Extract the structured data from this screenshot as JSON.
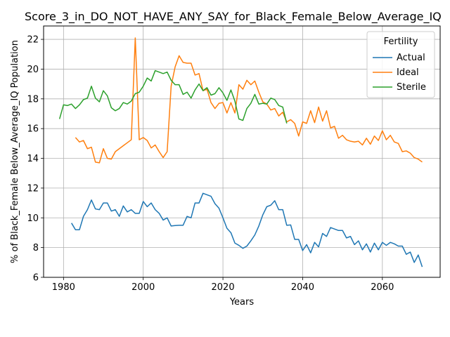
{
  "chart_data": {
    "type": "line",
    "title": "Score_3_in_DO_NOT_HAVE_ANY_SAY_for_Black_Female_Below_Average_IQ",
    "xlabel": "Years",
    "ylabel": "% of Black_Female Below_Average_IQ Population",
    "xlim": [
      1975,
      2074.5
    ],
    "ylim": [
      6,
      22.9
    ],
    "xticks": [
      1980,
      2000,
      2020,
      2040,
      2060
    ],
    "yticks": [
      6,
      8,
      10,
      12,
      14,
      16,
      18,
      20,
      22
    ],
    "grid": true,
    "legend": {
      "title": "Fertility",
      "placement": "top-right"
    },
    "series": [
      {
        "name": "Actual",
        "color": "#1f77b4",
        "x": [
          1982,
          1983,
          1984,
          1985,
          1986,
          1987,
          1988,
          1989,
          1990,
          1991,
          1992,
          1993,
          1994,
          1995,
          1996,
          1997,
          1998,
          1999,
          2000,
          2001,
          2002,
          2003,
          2004,
          2005,
          2006,
          2007,
          2008,
          2009,
          2010,
          2011,
          2012,
          2013,
          2014,
          2015,
          2016,
          2017,
          2018,
          2019,
          2020,
          2021,
          2022,
          2023,
          2024,
          2025,
          2026,
          2027,
          2028,
          2029,
          2030,
          2031,
          2032,
          2033,
          2034,
          2035,
          2036,
          2037,
          2038,
          2039,
          2040,
          2041,
          2042,
          2043,
          2044,
          2045,
          2046,
          2047,
          2048,
          2049,
          2050,
          2051,
          2052,
          2053,
          2054,
          2055,
          2056,
          2057,
          2058,
          2059,
          2060,
          2061,
          2062,
          2063,
          2064,
          2065,
          2066,
          2067,
          2068,
          2069,
          2070
        ],
        "values": [
          9.65,
          9.2,
          9.2,
          10.1,
          10.55,
          11.2,
          10.6,
          10.55,
          11.0,
          11.0,
          10.45,
          10.55,
          10.1,
          10.8,
          10.4,
          10.55,
          10.3,
          10.3,
          11.1,
          10.75,
          11.0,
          10.55,
          10.3,
          9.85,
          10.0,
          9.45,
          9.48,
          9.5,
          9.5,
          10.1,
          10.0,
          11.0,
          11.0,
          11.65,
          11.55,
          11.45,
          10.95,
          10.65,
          10.0,
          9.3,
          9.0,
          8.3,
          8.15,
          7.95,
          8.1,
          8.45,
          8.85,
          9.45,
          10.2,
          10.75,
          10.85,
          11.15,
          10.55,
          10.55,
          9.5,
          9.52,
          8.55,
          8.55,
          7.8,
          8.2,
          7.65,
          8.35,
          8.05,
          8.95,
          8.75,
          9.35,
          9.25,
          9.15,
          9.15,
          8.65,
          8.75,
          8.2,
          8.45,
          7.85,
          8.25,
          7.7,
          8.3,
          7.85,
          8.35,
          8.15,
          8.35,
          8.25,
          8.1,
          8.1,
          7.55,
          7.7,
          7.0,
          7.5,
          6.7
        ]
      },
      {
        "name": "Ideal",
        "color": "#ff7f0e",
        "x": [
          1983,
          1984,
          1985,
          1986,
          1987,
          1988,
          1989,
          1990,
          1991,
          1992,
          1993,
          1994,
          1995,
          1996,
          1997,
          1998,
          1999,
          2000,
          2001,
          2002,
          2003,
          2004,
          2005,
          2006,
          2007,
          2008,
          2009,
          2010,
          2011,
          2012,
          2013,
          2014,
          2015,
          2016,
          2017,
          2018,
          2019,
          2020,
          2021,
          2022,
          2023,
          2024,
          2025,
          2026,
          2027,
          2028,
          2029,
          2030,
          2031,
          2032,
          2033,
          2034,
          2035,
          2036,
          2037,
          2038,
          2039,
          2040,
          2041,
          2042,
          2043,
          2044,
          2045,
          2046,
          2047,
          2048,
          2049,
          2050,
          2051,
          2052,
          2053,
          2054,
          2055,
          2056,
          2057,
          2058,
          2059,
          2060,
          2061,
          2062,
          2063,
          2064,
          2065,
          2066,
          2067,
          2068,
          2069,
          2070
        ],
        "values": [
          15.4,
          15.1,
          15.2,
          14.65,
          14.75,
          13.75,
          13.7,
          14.65,
          14.0,
          13.95,
          14.45,
          14.65,
          14.85,
          15.05,
          15.25,
          22.1,
          15.25,
          15.4,
          15.2,
          14.7,
          14.9,
          14.45,
          14.05,
          14.45,
          18.85,
          20.15,
          20.9,
          20.45,
          20.4,
          20.4,
          19.6,
          19.7,
          18.55,
          18.65,
          17.75,
          17.35,
          17.7,
          17.75,
          17.05,
          17.75,
          17.05,
          18.95,
          18.65,
          19.25,
          18.95,
          19.2,
          18.45,
          17.8,
          17.65,
          17.25,
          17.35,
          16.85,
          17.1,
          16.45,
          16.6,
          16.35,
          15.5,
          16.45,
          16.35,
          17.2,
          16.4,
          17.45,
          16.5,
          17.2,
          16.05,
          16.15,
          15.35,
          15.55,
          15.25,
          15.15,
          15.1,
          15.15,
          14.9,
          15.35,
          14.95,
          15.5,
          15.2,
          15.85,
          15.25,
          15.55,
          15.1,
          15.0,
          14.45,
          14.5,
          14.35,
          14.05,
          13.95,
          13.75
        ]
      },
      {
        "name": "Sterile",
        "color": "#2ca02c",
        "x": [
          1979,
          1980,
          1981,
          1982,
          1983,
          1984,
          1985,
          1986,
          1987,
          1988,
          1989,
          1990,
          1991,
          1992,
          1993,
          1994,
          1995,
          1996,
          1997,
          1998,
          1999,
          2000,
          2001,
          2002,
          2003,
          2004,
          2005,
          2006,
          2007,
          2008,
          2009,
          2010,
          2011,
          2012,
          2013,
          2014,
          2015,
          2016,
          2017,
          2018,
          2019,
          2020,
          2021,
          2022,
          2023,
          2024,
          2025,
          2026,
          2027,
          2028,
          2029,
          2030,
          2031,
          2032,
          2033,
          2034,
          2035,
          2036
        ],
        "values": [
          16.65,
          17.6,
          17.55,
          17.65,
          17.35,
          17.6,
          17.95,
          18.05,
          18.85,
          18.05,
          17.8,
          18.55,
          18.2,
          17.4,
          17.2,
          17.35,
          17.75,
          17.65,
          17.85,
          18.35,
          18.45,
          18.85,
          19.4,
          19.2,
          19.9,
          19.8,
          19.7,
          19.8,
          19.25,
          18.95,
          18.95,
          18.3,
          18.45,
          18.05,
          18.6,
          19.0,
          18.55,
          18.75,
          18.25,
          18.35,
          18.75,
          18.4,
          17.9,
          18.6,
          17.85,
          16.65,
          16.55,
          17.35,
          17.7,
          18.3,
          17.65,
          17.7,
          17.65,
          18.05,
          17.95,
          17.55,
          17.45,
          16.35
        ]
      }
    ]
  }
}
